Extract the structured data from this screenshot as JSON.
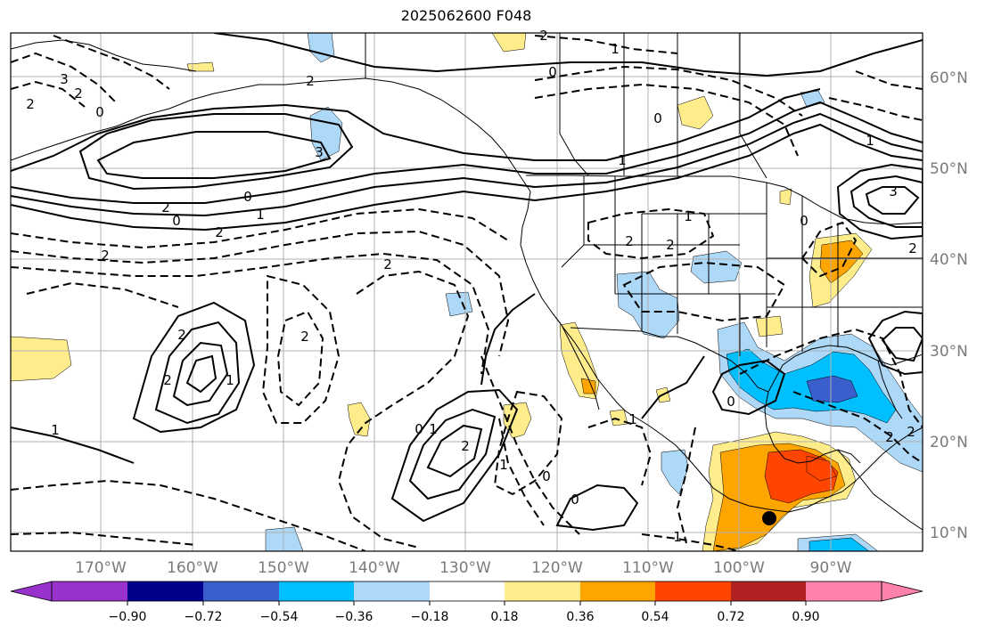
{
  "title": "2025062600 F048",
  "colors": {
    "neg_090": "#9932cc",
    "neg_072": "#00008b",
    "neg_054": "#3a5fcd",
    "neg_036": "#00bfff",
    "neg_018": "#add8f8",
    "zero": "#ffffff",
    "pos_018": "#ffec8b",
    "pos_036": "#ffa500",
    "pos_054": "#ff4500",
    "pos_072": "#b22222",
    "pos_090": "#ff82ab"
  },
  "colorbar": {
    "tick_labels": [
      "−0.90",
      "−0.72",
      "−0.54",
      "−0.36",
      "−0.18",
      "0.18",
      "0.36",
      "0.54",
      "0.72",
      "0.90"
    ],
    "extend": "both"
  },
  "longitude_labels": [
    "170°W",
    "160°W",
    "150°W",
    "140°W",
    "130°W",
    "120°W",
    "110°W",
    "100°W",
    "90°W"
  ],
  "latitude_labels": [
    "60°N",
    "50°N",
    "40°N",
    "30°N",
    "20°N",
    "10°N"
  ],
  "contour_labels": [
    "3",
    "2",
    "0",
    "2",
    "2",
    "1",
    "0",
    "0",
    "3",
    "2",
    "2",
    "0",
    "1",
    "2",
    "2",
    "2",
    "1",
    "2",
    "1",
    "0",
    "1",
    "0",
    "1",
    "1",
    "2",
    "2",
    "2",
    "1",
    "0",
    "2",
    "1",
    "0",
    "3",
    "1",
    "2",
    "2",
    "0",
    "2",
    "1",
    "0",
    "2"
  ],
  "marker": "storm-center"
}
